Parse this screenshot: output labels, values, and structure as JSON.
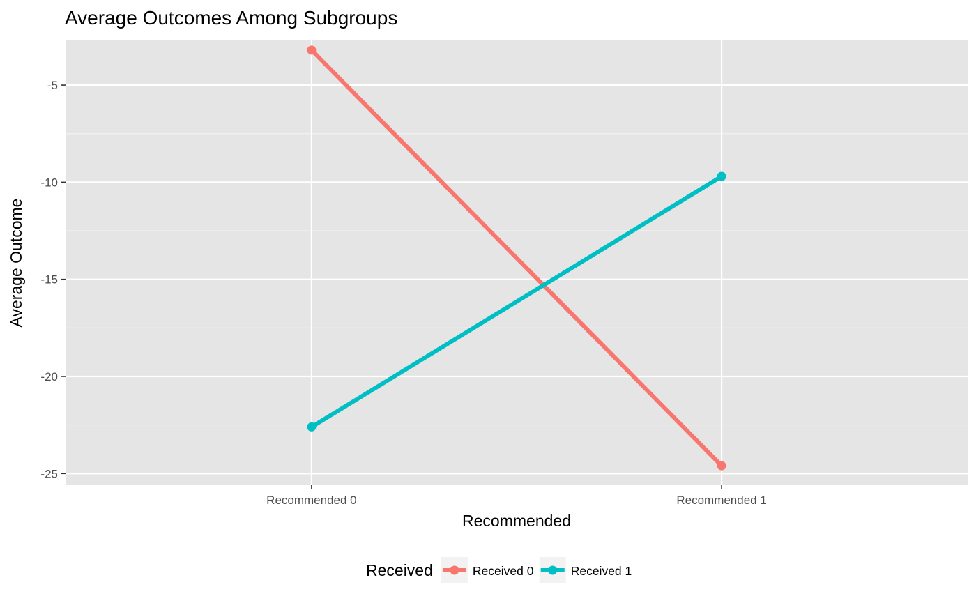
{
  "chart_data": {
    "type": "line",
    "title": "Average Outcomes Among Subgroups",
    "xlabel": "Recommended",
    "ylabel": "Average Outcome",
    "categories": [
      "Recommended 0",
      "Recommended 1"
    ],
    "y_ticks": [
      -5,
      -10,
      -15,
      -20,
      -25
    ],
    "y_tick_labels": [
      "-5",
      "-10",
      "-15",
      "-20",
      "-25"
    ],
    "ylim": [
      -25.6,
      -2.7
    ],
    "grid": true,
    "legend": {
      "title": "Received",
      "position": "bottom"
    },
    "series": [
      {
        "name": "Received 0",
        "color": "#F8766D",
        "values": [
          -3.2,
          -24.6
        ]
      },
      {
        "name": "Received 1",
        "color": "#00BFC4",
        "values": [
          -22.6,
          -9.7
        ]
      }
    ]
  }
}
